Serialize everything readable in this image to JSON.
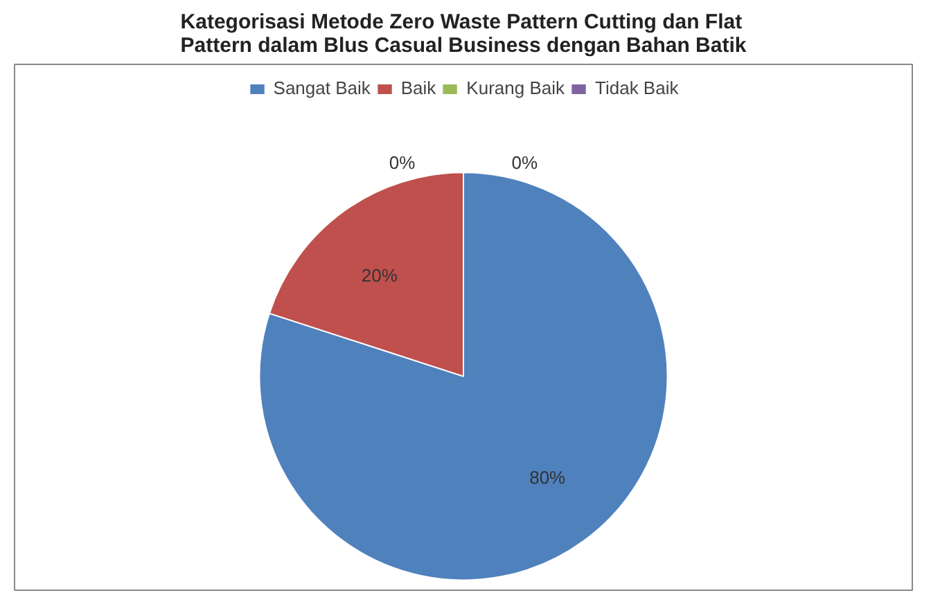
{
  "chart_data": {
    "type": "pie",
    "title": "Kategorisasi Metode Zero Waste Pattern Cutting dan Flat Pattern dalam Blus Casual Business dengan Bahan Batik",
    "categories": [
      "Sangat Baik",
      "Baik",
      "Kurang Baik",
      "Tidak Baik"
    ],
    "values": [
      80,
      20,
      0,
      0
    ],
    "colors": [
      "#4f81bd",
      "#c0504d",
      "#9bbb59",
      "#8064a2"
    ],
    "value_labels": [
      "80%",
      "20%",
      "0%",
      "0%"
    ],
    "legend": "top"
  }
}
